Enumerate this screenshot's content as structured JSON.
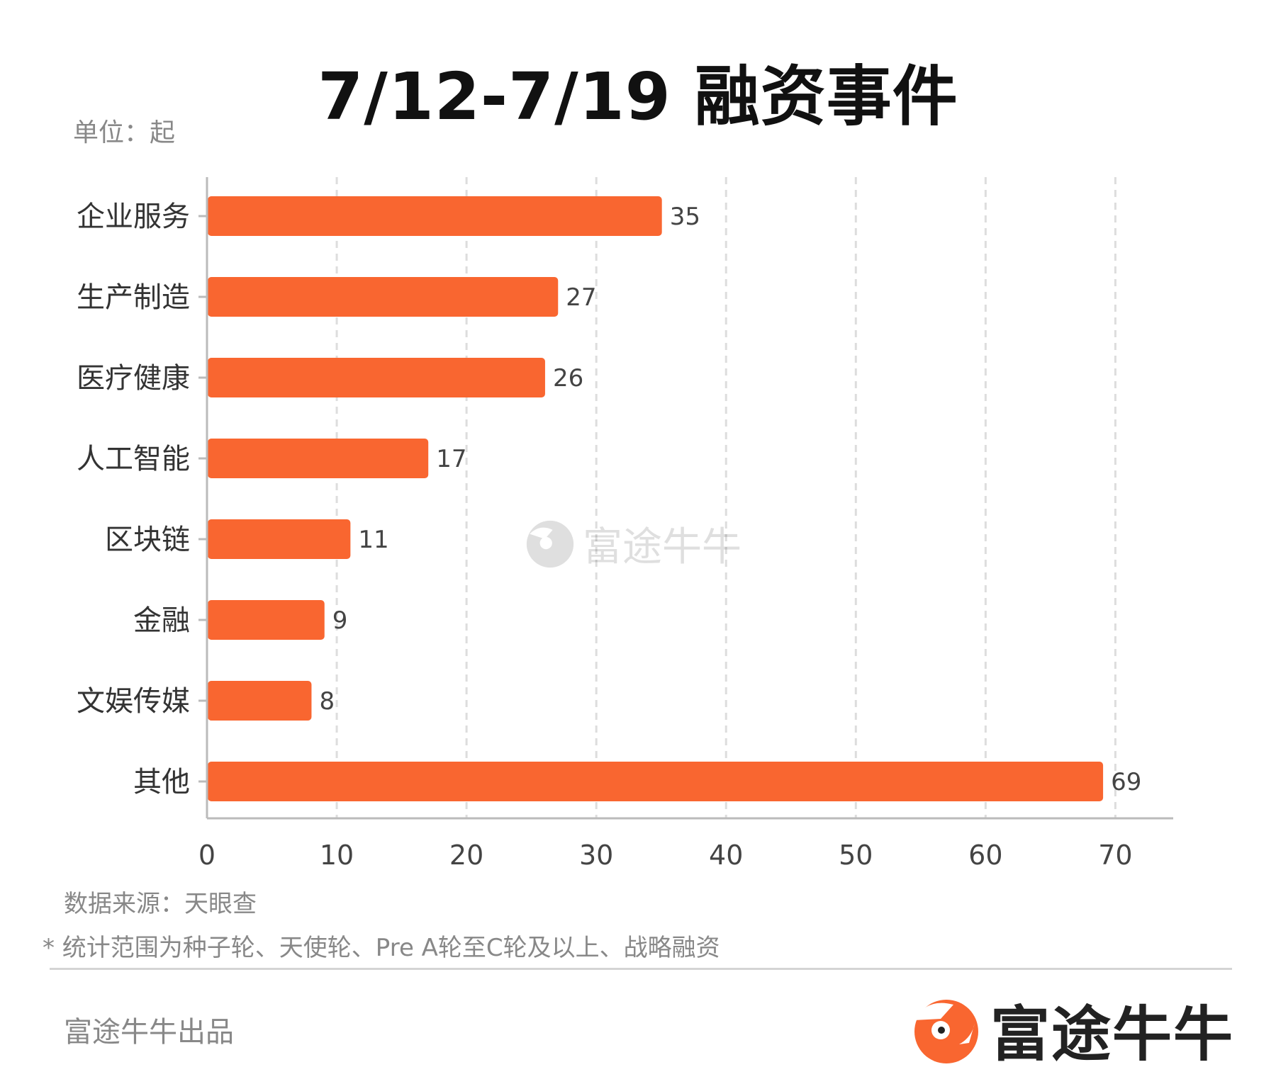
{
  "title": "7/12-7/19 融资事件",
  "unit_label": "单位：起",
  "source_label": "数据来源：天眼查",
  "note_label": "* 统计范围为种子轮、天使轮、Pre A轮至C轮及以上、战略融资",
  "footer_text": "富途牛牛出品",
  "brand_name": "富途牛牛",
  "watermark_text": "富途牛牛",
  "colors": {
    "bar": "#F96630",
    "axis": "#bbbbbb",
    "grid": "#dddddd",
    "logo": "#F96630"
  },
  "chart_data": {
    "type": "bar",
    "orientation": "horizontal",
    "categories": [
      "企业服务",
      "生产制造",
      "医疗健康",
      "人工智能",
      "区块链",
      "金融",
      "文娱传媒",
      "其他"
    ],
    "values": [
      35,
      27,
      26,
      17,
      11,
      9,
      8,
      69
    ],
    "xlim": [
      0,
      72
    ],
    "xticks": [
      0,
      10,
      20,
      30,
      40,
      50,
      60,
      70
    ],
    "grid": "vertical-dashed",
    "data_labels": true,
    "title": "7/12-7/19 融资事件",
    "xlabel": "",
    "ylabel": ""
  }
}
